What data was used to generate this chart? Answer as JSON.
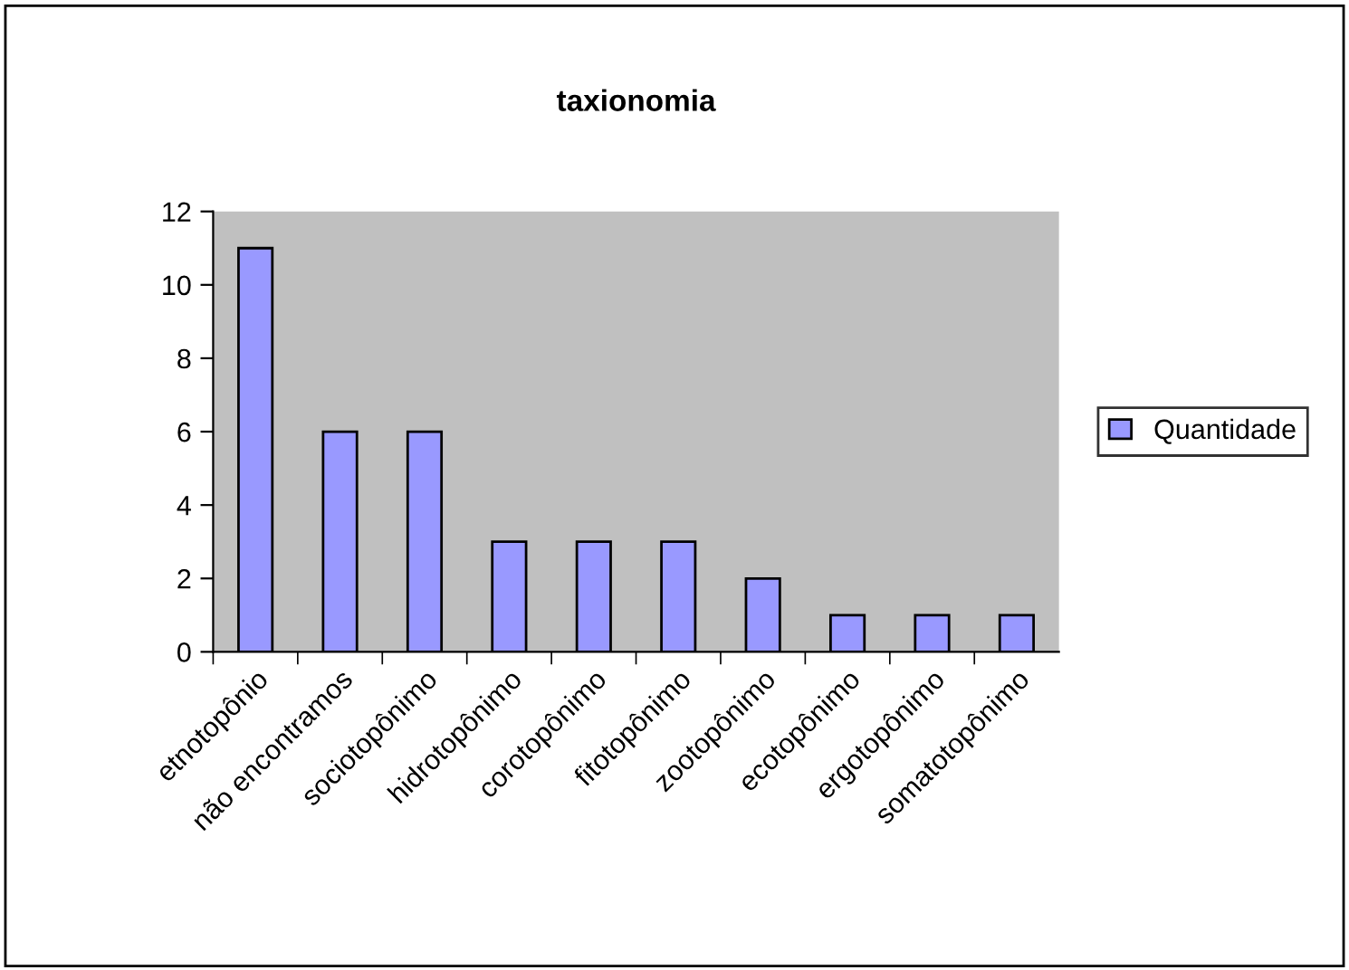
{
  "chart_data": {
    "type": "bar",
    "title": "taxionomia",
    "categories": [
      "etnotopônio",
      "não encontramos",
      "sociotopônimo",
      "hidrotopônimo",
      "corotopônimo",
      "fitotopônimo",
      "zootopônimo",
      "ecotopônimo",
      "ergotopônimo",
      "somatotopônimo"
    ],
    "series": [
      {
        "name": "Quantidade",
        "color": "#9999ff",
        "values": [
          11,
          6,
          6,
          3,
          3,
          3,
          2,
          1,
          1,
          1
        ]
      }
    ],
    "ylim": [
      0,
      12
    ],
    "yticks": [
      0,
      2,
      4,
      6,
      8,
      10,
      12
    ],
    "grid": false,
    "legend": "right"
  }
}
